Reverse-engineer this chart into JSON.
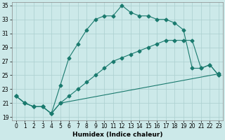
{
  "xlabel": "Humidex (Indice chaleur)",
  "xlim": [
    -0.5,
    23.5
  ],
  "ylim": [
    18.5,
    35.5
  ],
  "xticks": [
    0,
    1,
    2,
    3,
    4,
    5,
    6,
    7,
    8,
    9,
    10,
    11,
    12,
    13,
    14,
    15,
    16,
    17,
    18,
    19,
    20,
    21,
    22,
    23
  ],
  "yticks": [
    19,
    21,
    23,
    25,
    27,
    29,
    31,
    33,
    35
  ],
  "background_color": "#cce9e9",
  "grid_color": "#aacfcf",
  "line_color": "#1a7a6e",
  "line1_x": [
    0,
    1,
    2,
    3,
    4,
    5,
    6,
    7,
    8,
    9,
    10,
    11,
    12,
    13,
    14,
    15,
    16,
    17,
    18,
    19,
    20,
    21,
    22,
    23
  ],
  "line1_y": [
    22,
    21,
    20.5,
    20.5,
    19.5,
    23.5,
    27.5,
    29.5,
    31.5,
    33,
    33.5,
    33.5,
    35,
    34,
    33.5,
    33.5,
    33,
    33,
    32.5,
    31.5,
    26,
    26,
    26.5,
    25
  ],
  "line2_x": [
    0,
    1,
    2,
    3,
    4,
    5,
    6,
    7,
    8,
    9,
    10,
    11,
    12,
    13,
    14,
    15,
    16,
    17,
    18,
    19,
    20,
    21,
    22,
    23
  ],
  "line2_y": [
    22,
    21,
    20.5,
    20.5,
    19.5,
    21,
    22,
    23,
    24,
    25,
    26,
    27,
    27.5,
    28,
    28.5,
    29,
    29.5,
    30,
    30,
    30,
    30,
    26,
    26.5,
    25
  ],
  "line3_x": [
    0,
    1,
    2,
    3,
    4,
    5,
    23
  ],
  "line3_y": [
    22,
    21,
    20.5,
    20.5,
    19.5,
    21,
    25.2
  ],
  "marker": "D",
  "markersize": 2.5,
  "linewidth": 0.8,
  "tick_fontsize": 5.5,
  "xlabel_fontsize": 6.5
}
